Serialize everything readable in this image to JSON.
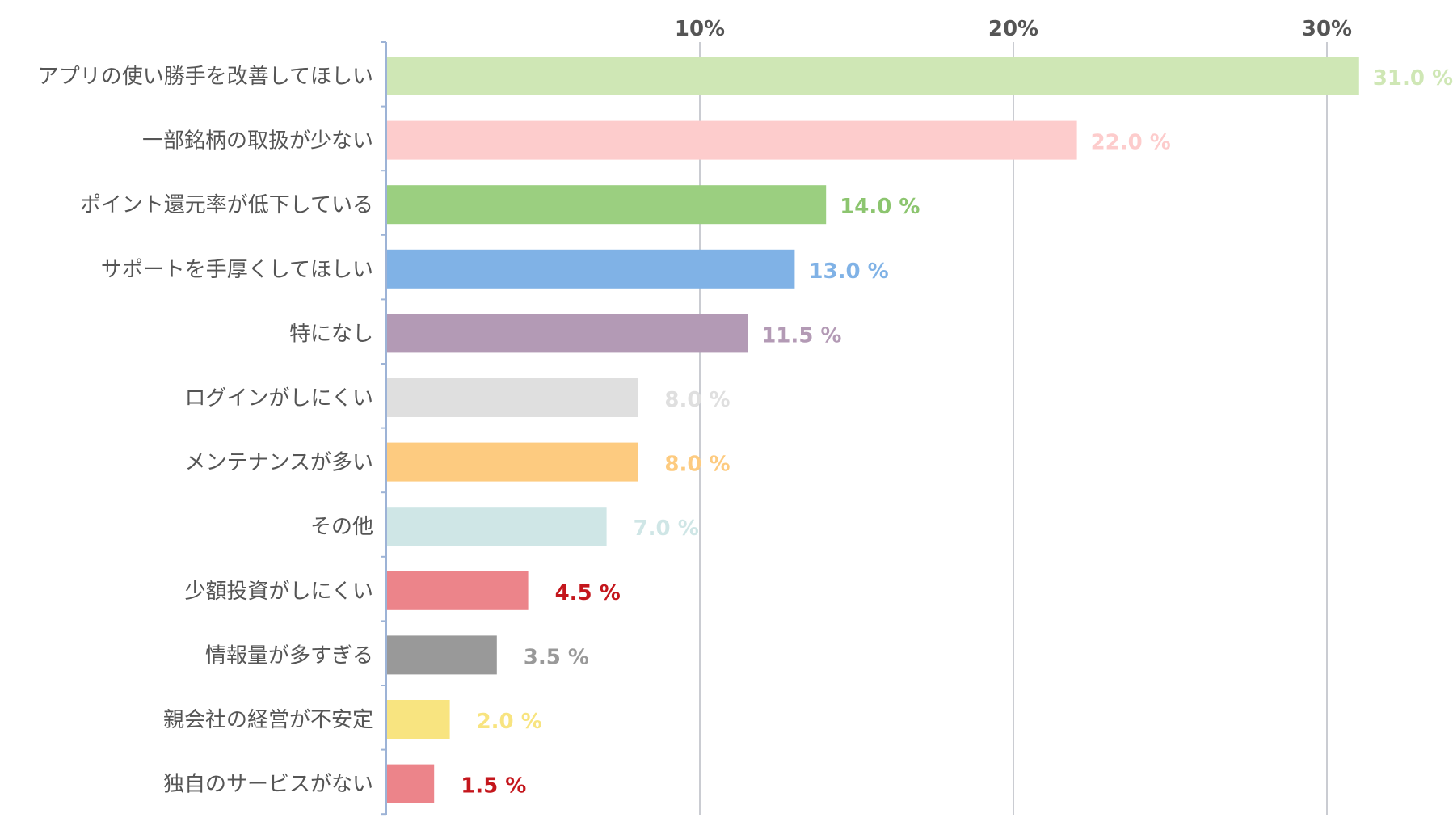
{
  "chart_data": {
    "type": "bar",
    "orientation": "horizontal",
    "categories": [
      "アプリの使い勝手を改善してほしい",
      "一部銘柄の取扱が少ない",
      "ポイント還元率が低下している",
      "サポートを手厚くしてほしい",
      "特になし",
      "ログインがしにくい",
      "メンテナンスが多い",
      "その他",
      "少額投資がしにくい",
      "情報量が多すぎる",
      "親会社の経営が不安定",
      "独自のサービスがない"
    ],
    "values": [
      31.0,
      22.0,
      14.0,
      13.0,
      11.5,
      8.0,
      8.0,
      7.0,
      4.5,
      3.5,
      2.0,
      1.5
    ],
    "value_labels": [
      "31.0 %",
      "22.0 %",
      "14.0 %",
      "13.0 %",
      "11.5 %",
      "8.0 %",
      "8.0 %",
      "7.0 %",
      "4.5 %",
      "3.5 %",
      "2.0 %",
      "1.5 %"
    ],
    "bar_colors": [
      "#cfe7b5",
      "#fdcccc",
      "#9bcf80",
      "#80b2e6",
      "#b39ab5",
      "#dfdfdf",
      "#fdcb80",
      "#cfe6e6",
      "#ec848a",
      "#999999",
      "#f8e480",
      "#ec848a"
    ],
    "label_colors": [
      "#cfe7b5",
      "#fdcccc",
      "#8cc56f",
      "#80b2e6",
      "#b39ab5",
      "#dfdfdf",
      "#fdcb80",
      "#cfe6e6",
      "#c4161c",
      "#999999",
      "#f8e480",
      "#c4161c"
    ],
    "xticks": [
      10,
      20,
      30
    ],
    "xtick_labels": [
      "10%",
      "20%",
      "30%"
    ],
    "xlim": [
      0,
      33.5
    ],
    "axis_position": "top",
    "grid": true,
    "title": "",
    "xlabel": "",
    "ylabel": ""
  }
}
